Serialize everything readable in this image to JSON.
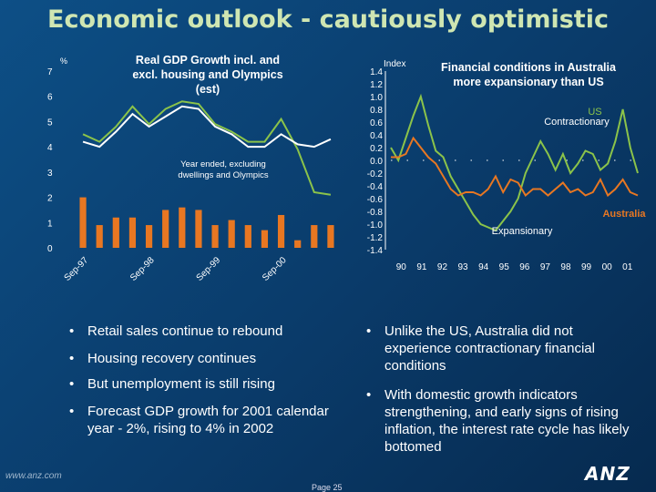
{
  "slide": {
    "title": "Economic outlook - cautiously optimistic",
    "footer_url": "www.anz.com",
    "page_label": "Page 25",
    "logo": "ANZ"
  },
  "chart_data": [
    {
      "type": "bar+line",
      "title": "Real GDP Growth incl. and excl. housing and Olympics (est)",
      "ylabel": "%",
      "ylim": [
        0,
        7
      ],
      "yticks": [
        "0",
        "1",
        "2",
        "3",
        "4",
        "5",
        "6",
        "7"
      ],
      "x_tick_labels": [
        "Sep-97",
        "Sep-98",
        "Sep-99",
        "Sep-00"
      ],
      "x_tick_index": [
        0,
        4,
        8,
        12
      ],
      "annotation": "Year ended, excluding dwellings and Olympics",
      "bars": [
        2.0,
        0.9,
        1.2,
        1.2,
        0.9,
        1.5,
        1.6,
        1.5,
        0.9,
        1.1,
        0.9,
        0.7,
        1.3,
        0.3,
        0.9,
        0.9
      ],
      "lines": [
        {
          "color": "#8bc34a",
          "values": [
            4.5,
            4.2,
            4.8,
            5.6,
            4.9,
            5.5,
            5.8,
            5.7,
            4.9,
            4.6,
            4.2,
            4.2,
            5.1,
            3.9,
            2.2,
            2.1
          ]
        },
        {
          "color": "#ffffff",
          "values": [
            4.2,
            4.0,
            4.6,
            5.3,
            4.8,
            5.2,
            5.6,
            5.5,
            4.8,
            4.5,
            4.0,
            4.0,
            4.5,
            4.1,
            4.0,
            4.3
          ]
        }
      ],
      "colors": {
        "bars": "#e87722"
      }
    },
    {
      "type": "line",
      "title": "Financial conditions in Australia more expansionary than US",
      "ylabel": "Index",
      "ylim": [
        -1.4,
        1.4
      ],
      "yticks": [
        "1.4",
        "1.2",
        "1.0",
        "0.8",
        "0.6",
        "0.4",
        "0.2",
        "0.0",
        "-0.2",
        "-0.4",
        "-0.6",
        "-0.8",
        "-1.0",
        "-1.2",
        "-1.4"
      ],
      "x_labels": [
        "90",
        "91",
        "92",
        "93",
        "94",
        "95",
        "96",
        "97",
        "98",
        "99",
        "00",
        "01"
      ],
      "annotations": {
        "top": "Contractionary",
        "bottom": "Expansionary"
      },
      "series": [
        {
          "name": "US",
          "color": "#8bc34a",
          "values": [
            0.2,
            0.0,
            0.35,
            0.7,
            1.0,
            0.55,
            0.15,
            0.05,
            -0.25,
            -0.45,
            -0.65,
            -0.85,
            -1.0,
            -1.05,
            -1.1,
            -0.95,
            -0.8,
            -0.6,
            -0.2,
            0.05,
            0.3,
            0.1,
            -0.15,
            0.1,
            -0.2,
            -0.05,
            0.15,
            0.1,
            -0.15,
            -0.05,
            0.3,
            0.8,
            0.2,
            -0.2
          ]
        },
        {
          "name": "Australia",
          "color": "#e87722",
          "values": [
            0.05,
            0.05,
            0.1,
            0.35,
            0.2,
            0.05,
            -0.05,
            -0.25,
            -0.45,
            -0.55,
            -0.5,
            -0.5,
            -0.55,
            -0.45,
            -0.25,
            -0.5,
            -0.3,
            -0.35,
            -0.55,
            -0.45,
            -0.45,
            -0.55,
            -0.45,
            -0.35,
            -0.5,
            -0.45,
            -0.55,
            -0.5,
            -0.3,
            -0.55,
            -0.45,
            -0.3,
            -0.5,
            -0.55
          ]
        }
      ]
    }
  ],
  "bullets_left": [
    "Retail sales continue to rebound",
    "Housing recovery continues",
    "But unemployment is still rising",
    "Forecast GDP growth for 2001 calendar year -  2%, rising to 4% in 2002"
  ],
  "bullets_right": [
    "Unlike the US, Australia did not experience contractionary financial conditions",
    "With domestic growth indicators strengthening, and early signs of rising inflation, the interest rate cycle has likely bottomed"
  ]
}
